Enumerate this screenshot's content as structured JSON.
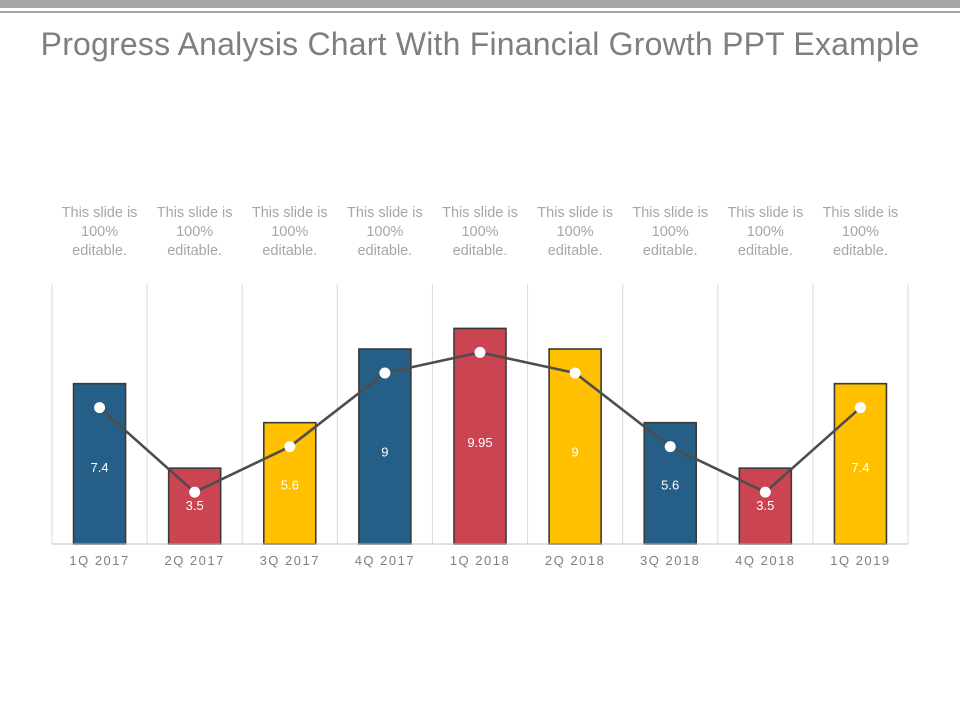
{
  "title": "Progress Analysis Chart With Financial Growth PPT Example",
  "colors": {
    "blue": "#255e86",
    "red": "#cb4451",
    "yellow": "#ffc000",
    "line": "#4d4d4d",
    "text_light": "#a6a6a6",
    "title": "#7f7f7f"
  },
  "chart_data": {
    "type": "bar",
    "categories": [
      "1Q 2017",
      "2Q 2017",
      "3Q 2017",
      "4Q 2017",
      "1Q 2018",
      "2Q 2018",
      "3Q 2018",
      "4Q 2018",
      "1Q 2019"
    ],
    "series": [
      {
        "values": [
          7.4,
          3.5,
          5.6,
          9,
          9.95,
          9,
          5.6,
          3.5,
          7.4
        ]
      }
    ],
    "bar_colors": [
      "blue",
      "red",
      "yellow",
      "blue",
      "red",
      "yellow",
      "blue",
      "red",
      "yellow"
    ],
    "line_overlay": true,
    "notes": [
      "This slide is 100% editable.",
      "This slide is 100% editable.",
      "This slide is 100% editable.",
      "This slide is 100% editable.",
      "This slide is 100% editable.",
      "This slide is 100% editable.",
      "This slide is 100% editable.",
      "This slide is 100% editable.",
      "This slide is 100% editable."
    ],
    "ylim": [
      0,
      12
    ],
    "grid": "vertical",
    "legend": "none"
  }
}
